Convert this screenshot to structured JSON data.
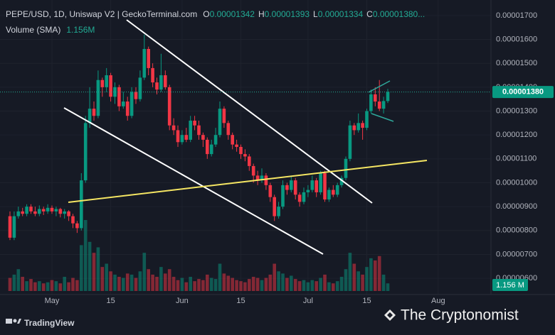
{
  "header": {
    "symbol": "PEPE/USD, 1D, Uniswap V2 | GeckoTerminal.com",
    "ohlc": [
      {
        "key": "O",
        "value": "0.00001342"
      },
      {
        "key": "H",
        "value": "0.00001393"
      },
      {
        "key": "L",
        "value": "0.00001334"
      },
      {
        "key": "C",
        "value": "0.00001380..."
      }
    ],
    "volume_label": "Volume (SMA)",
    "volume_value": "1.156M"
  },
  "chart_data": {
    "type": "candlestick",
    "x": [
      "Apr 21",
      "Apr 22",
      "Apr 23",
      "Apr 24",
      "Apr 25",
      "Apr 26",
      "Apr 27",
      "Apr 28",
      "Apr 29",
      "Apr 30",
      "May 1",
      "May 2",
      "May 3",
      "May 4",
      "May 5",
      "May 6",
      "May 7",
      "May 8",
      "May 9",
      "May 10",
      "May 11",
      "May 12",
      "May 13",
      "May 14",
      "May 15",
      "May 16",
      "May 17",
      "May 18",
      "May 19",
      "May 20",
      "May 21",
      "May 22",
      "May 23",
      "May 24",
      "May 25",
      "May 26",
      "May 27",
      "May 28",
      "May 29",
      "May 30",
      "May 31",
      "Jun 1",
      "Jun 2",
      "Jun 3",
      "Jun 4",
      "Jun 5",
      "Jun 6",
      "Jun 7",
      "Jun 8",
      "Jun 9",
      "Jun 10",
      "Jun 11",
      "Jun 12",
      "Jun 13",
      "Jun 14",
      "Jun 15",
      "Jun 16",
      "Jun 17",
      "Jun 18",
      "Jun 19",
      "Jun 20",
      "Jun 21",
      "Jun 22",
      "Jun 23",
      "Jun 24",
      "Jun 25",
      "Jun 26",
      "Jun 27",
      "Jun 28",
      "Jun 29",
      "Jun 30",
      "Jul 1",
      "Jul 2",
      "Jul 3",
      "Jul 4",
      "Jul 5",
      "Jul 6",
      "Jul 7",
      "Jul 8",
      "Jul 9",
      "Jul 10",
      "Jul 11",
      "Jul 12",
      "Jul 13",
      "Jul 14",
      "Jul 15",
      "Jul 16",
      "Jul 17",
      "Jul 18",
      "Jul 19",
      "Jul 20"
    ],
    "open": [
      8.6e-06,
      7.7e-06,
      8.6e-06,
      8.8e-06,
      8.7e-06,
      9e-06,
      8.8e-06,
      8.7e-06,
      8.9e-06,
      8.8e-06,
      8.95e-06,
      8.8e-06,
      8.9e-06,
      8.7e-06,
      8.8e-06,
      8.6e-06,
      8.3e-06,
      8.1e-06,
      1.01e-05,
      1.25e-05,
      1.31e-05,
      1.28e-05,
      1.43e-05,
      1.4e-05,
      1.45e-05,
      1.36e-05,
      1.4e-05,
      1.32e-05,
      1.34e-05,
      1.28e-05,
      1.38e-05,
      1.35e-05,
      1.44e-05,
      1.56e-05,
      1.48e-05,
      1.42e-05,
      1.39e-05,
      1.45e-05,
      1.4e-05,
      1.24e-05,
      1.22e-05,
      1.17e-05,
      1.2e-05,
      1.18e-05,
      1.26e-05,
      1.24e-05,
      1.2e-05,
      1.18e-05,
      1.12e-05,
      1.16e-05,
      1.2e-05,
      1.31e-05,
      1.25e-05,
      1.2e-05,
      1.16e-05,
      1.15e-05,
      1.12e-05,
      1.11e-05,
      1.07e-05,
      1.03e-05,
      1.01e-05,
      1.03e-05,
      9.9e-06,
      9.4e-06,
      8.6e-06,
      9e-06,
      9.9e-06,
      9.7e-06,
      1.01e-05,
      9.5e-06,
      9.2e-06,
      9.6e-06,
      9.7e-06,
      1.01e-05,
      9.6e-06,
      1.04e-05,
      9.3e-06,
      9.7e-06,
      9.5e-06,
      9.9e-06,
      1.02e-05,
      1.1e-05,
      1.24e-05,
      1.22e-05,
      1.25e-05,
      1.23e-05,
      1.3e-05,
      1.37e-05,
      1.34e-05,
      1.31e-05,
      1.342e-05
    ],
    "high": [
      8.8e-06,
      8.8e-06,
      9e-06,
      8.95e-06,
      9.1e-06,
      9.1e-06,
      9e-06,
      9.05e-06,
      9e-06,
      9.1e-06,
      9.05e-06,
      9e-06,
      8.95e-06,
      8.9e-06,
      8.85e-06,
      8.7e-06,
      8.4e-06,
      1.04e-05,
      1.28e-05,
      1.4e-05,
      1.34e-05,
      1.47e-05,
      1.44e-05,
      1.48e-05,
      1.46e-05,
      1.42e-05,
      1.41e-05,
      1.38e-05,
      1.36e-05,
      1.4e-05,
      1.4e-05,
      1.47e-05,
      1.62e-05,
      1.57e-05,
      1.5e-05,
      1.44e-05,
      1.54e-05,
      1.47e-05,
      1.41e-05,
      1.27e-05,
      1.24e-05,
      1.22e-05,
      1.23e-05,
      1.28e-05,
      1.28e-05,
      1.26e-05,
      1.21e-05,
      1.19e-05,
      1.18e-05,
      1.23e-05,
      1.34e-05,
      1.32e-05,
      1.26e-05,
      1.21e-05,
      1.18e-05,
      1.16e-05,
      1.14e-05,
      1.12e-05,
      1.08e-05,
      1.05e-05,
      1.06e-05,
      1.04e-05,
      1e-05,
      9.5e-06,
      9.2e-06,
      1.01e-05,
      1e-05,
      1.03e-05,
      1.02e-05,
      9.6e-06,
      9.8e-06,
      9.9e-06,
      1.03e-05,
      1.02e-05,
      1.05e-05,
      1.05e-05,
      9.8e-06,
      9.9e-06,
      1e-05,
      1.03e-05,
      1.11e-05,
      1.26e-05,
      1.25e-05,
      1.29e-05,
      1.26e-05,
      1.31e-05,
      1.39e-05,
      1.4e-05,
      1.43e-05,
      1.36e-05,
      1.393e-05
    ],
    "low": [
      7.6e-06,
      7.6e-06,
      8.5e-06,
      8.6e-06,
      8.6e-06,
      8.7e-06,
      8.6e-06,
      8.6e-06,
      8.65e-06,
      8.7e-06,
      8.7e-06,
      8.6e-06,
      8.55e-06,
      8.5e-06,
      8.4e-06,
      8.1e-06,
      7.9e-06,
      8e-06,
      1e-05,
      1.23e-05,
      1.26e-05,
      1.27e-05,
      1.36e-05,
      1.38e-05,
      1.34e-05,
      1.33e-05,
      1.3e-05,
      1.31e-05,
      1.26e-05,
      1.27e-05,
      1.33e-05,
      1.34e-05,
      1.43e-05,
      1.45e-05,
      1.4e-05,
      1.37e-05,
      1.38e-05,
      1.39e-05,
      1.22e-05,
      1.2e-05,
      1.15e-05,
      1.16e-05,
      1.17e-05,
      1.17e-05,
      1.22e-05,
      1.18e-05,
      1.15e-05,
      1.1e-05,
      1.11e-05,
      1.15e-05,
      1.19e-05,
      1.23e-05,
      1.18e-05,
      1.14e-05,
      1.13e-05,
      1.1e-05,
      1.09e-05,
      1.05e-05,
      1e-05,
      9.9e-06,
      1e-05,
      9.7e-06,
      9.2e-06,
      8.4e-06,
      8.5e-06,
      8.9e-06,
      9.5e-06,
      9.6e-06,
      9.3e-06,
      9e-06,
      9.1e-06,
      9.4e-06,
      9.6e-06,
      9.4e-06,
      9.5e-06,
      9.2e-06,
      9.2e-06,
      9.4e-06,
      9.4e-06,
      9.8e-06,
      1.01e-05,
      1.09e-05,
      1.2e-05,
      1.21e-05,
      1.18e-05,
      1.22e-05,
      1.29e-05,
      1.32e-05,
      1.3e-05,
      1.29e-05,
      1.334e-05
    ],
    "close": [
      7.7e-06,
      8.6e-06,
      8.8e-06,
      8.7e-06,
      9e-06,
      8.8e-06,
      8.7e-06,
      8.9e-06,
      8.8e-06,
      8.95e-06,
      8.8e-06,
      8.9e-06,
      8.7e-06,
      8.8e-06,
      8.6e-06,
      8.3e-06,
      8.1e-06,
      1.01e-05,
      1.25e-05,
      1.31e-05,
      1.28e-05,
      1.43e-05,
      1.4e-05,
      1.45e-05,
      1.36e-05,
      1.4e-05,
      1.32e-05,
      1.34e-05,
      1.28e-05,
      1.38e-05,
      1.35e-05,
      1.44e-05,
      1.56e-05,
      1.48e-05,
      1.42e-05,
      1.39e-05,
      1.45e-05,
      1.4e-05,
      1.24e-05,
      1.22e-05,
      1.17e-05,
      1.2e-05,
      1.18e-05,
      1.26e-05,
      1.24e-05,
      1.2e-05,
      1.18e-05,
      1.12e-05,
      1.16e-05,
      1.2e-05,
      1.31e-05,
      1.25e-05,
      1.2e-05,
      1.16e-05,
      1.15e-05,
      1.12e-05,
      1.11e-05,
      1.07e-05,
      1.03e-05,
      1.01e-05,
      1.03e-05,
      9.9e-06,
      9.4e-06,
      8.6e-06,
      9e-06,
      9.9e-06,
      9.7e-06,
      1.01e-05,
      9.5e-06,
      9.2e-06,
      9.6e-06,
      9.7e-06,
      1.01e-05,
      9.6e-06,
      1.04e-05,
      9.3e-06,
      9.7e-06,
      9.5e-06,
      9.9e-06,
      1.02e-05,
      1.1e-05,
      1.24e-05,
      1.22e-05,
      1.25e-05,
      1.23e-05,
      1.3e-05,
      1.37e-05,
      1.34e-05,
      1.31e-05,
      1.342e-05,
      1.38e-05
    ],
    "volume": [
      1.2,
      1.5,
      2.0,
      1.3,
      0.9,
      1.1,
      0.8,
      0.9,
      0.7,
      0.8,
      1.0,
      0.9,
      0.7,
      1.3,
      0.8,
      1.2,
      1.0,
      4.2,
      6.5,
      4.5,
      3.5,
      4.0,
      2.2,
      2.5,
      1.8,
      1.5,
      1.3,
      1.2,
      1.6,
      1.5,
      1.2,
      1.8,
      3.5,
      2.0,
      1.5,
      1.3,
      2.2,
      1.6,
      2.0,
      1.3,
      1.0,
      1.2,
      0.8,
      1.3,
      0.9,
      1.1,
      1.0,
      1.5,
      1.2,
      1.1,
      2.5,
      1.6,
      1.4,
      1.2,
      1.0,
      0.9,
      0.8,
      1.1,
      1.3,
      1.2,
      1.0,
      1.2,
      1.5,
      2.5,
      1.8,
      1.6,
      1.2,
      1.4,
      1.1,
      0.9,
      1.0,
      0.8,
      1.0,
      0.9,
      1.2,
      1.5,
      0.8,
      0.7,
      0.9,
      1.3,
      2.0,
      3.5,
      2.5,
      1.8,
      1.5,
      2.2,
      3.0,
      2.8,
      3.2,
      1.5,
      0.7
    ],
    "up_color": "#089981",
    "down_color": "#f23645",
    "ylim": [
      5.32e-06,
      1.765e-05
    ],
    "yticks": [
      {
        "value": 1.7e-05,
        "label": "0.00001700"
      },
      {
        "value": 1.6e-05,
        "label": "0.00001600"
      },
      {
        "value": 1.5e-05,
        "label": "0.00001500"
      },
      {
        "value": 1.4e-05,
        "label": "0.00001400"
      },
      {
        "value": 1.3e-05,
        "label": "0.00001300"
      },
      {
        "value": 1.2e-05,
        "label": "0.00001200"
      },
      {
        "value": 1.1e-05,
        "label": "0.00001100"
      },
      {
        "value": 1e-05,
        "label": "0.00001000"
      },
      {
        "value": 9e-06,
        "label": "0.00000900"
      },
      {
        "value": 8e-06,
        "label": "0.00000800"
      },
      {
        "value": 7e-06,
        "label": "0.00000700"
      },
      {
        "value": 6e-06,
        "label": "0.00000600"
      }
    ],
    "xticks": [
      {
        "value": "May 1",
        "label": "May"
      },
      {
        "value": "May 15",
        "label": "15"
      },
      {
        "value": "Jun 1",
        "label": "Jun"
      },
      {
        "value": "Jun 15",
        "label": "15"
      },
      {
        "value": "Jul 1",
        "label": "Jul"
      },
      {
        "value": "Jul 15",
        "label": "15"
      },
      {
        "value": "Aug 1",
        "label": "Aug"
      }
    ],
    "grid": true,
    "last_price_label": "0.00001380",
    "volume_badge": "1.156 M"
  },
  "footer": {
    "logo": "TradingView",
    "watermark": "The Cryptonomist"
  }
}
